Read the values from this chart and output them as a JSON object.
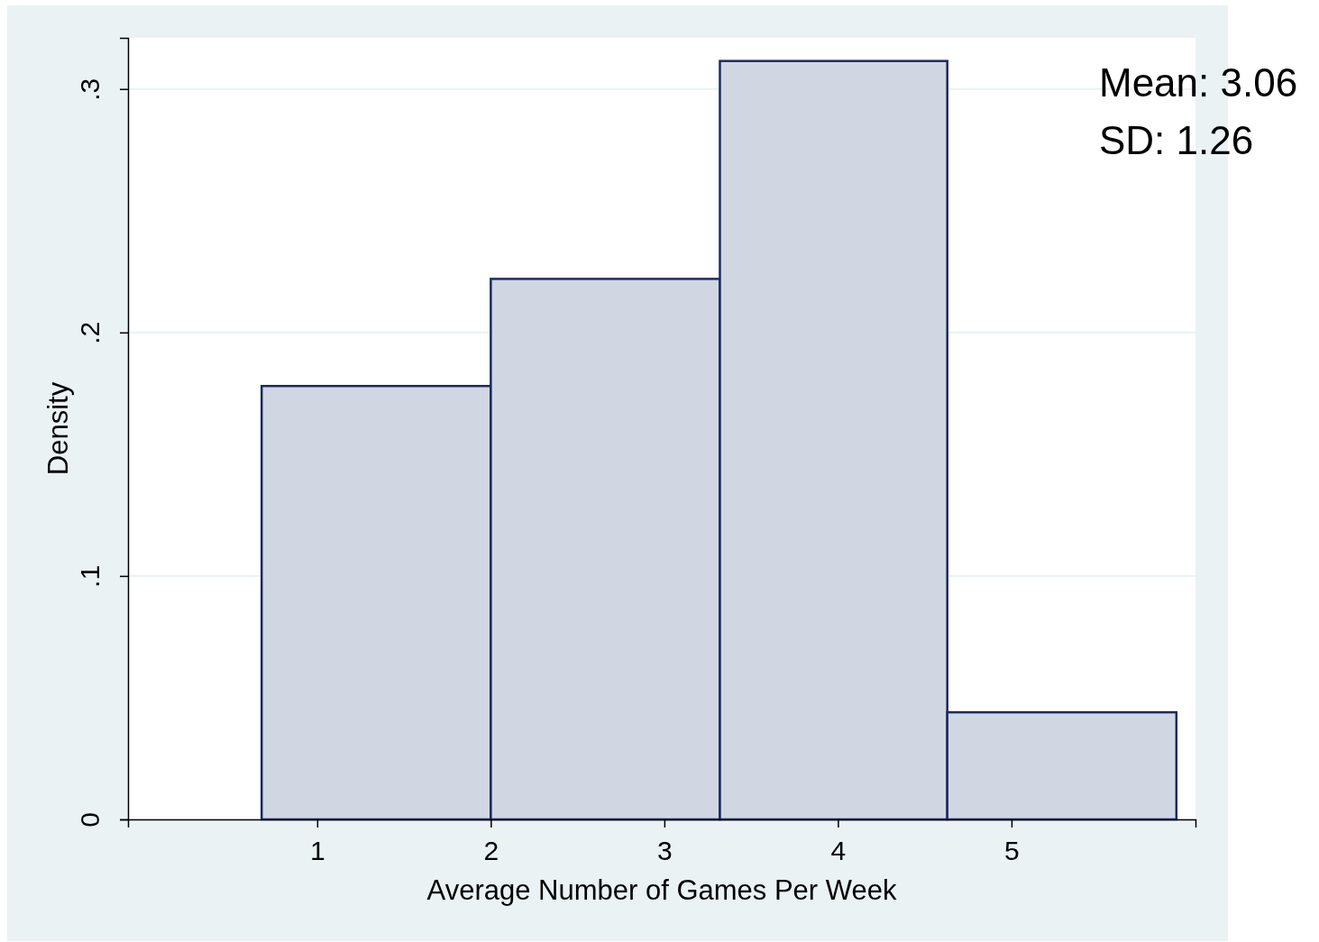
{
  "chart_data": {
    "type": "histogram",
    "xlabel": "Average Number of Games Per Week",
    "ylabel": "Density",
    "bins": [
      0.68,
      2.0,
      3.32,
      4.63,
      5.95
    ],
    "values": [
      0.178,
      0.222,
      0.3115,
      0.044
    ],
    "color": "#d1d7e2",
    "xlim": [
      -0.09,
      6.06
    ],
    "xticks": [
      1,
      2,
      3,
      4,
      5
    ],
    "ylim": [
      0,
      0.321
    ],
    "yticks": [
      {
        "value": 0,
        "label": "0"
      },
      {
        "value": 0.1,
        "label": ".1"
      },
      {
        "value": 0.2,
        "label": ".2"
      },
      {
        "value": 0.3,
        "label": ".3"
      }
    ],
    "grid": "y",
    "annotations": [
      "Mean: 3.06",
      "SD: 1.26"
    ]
  }
}
